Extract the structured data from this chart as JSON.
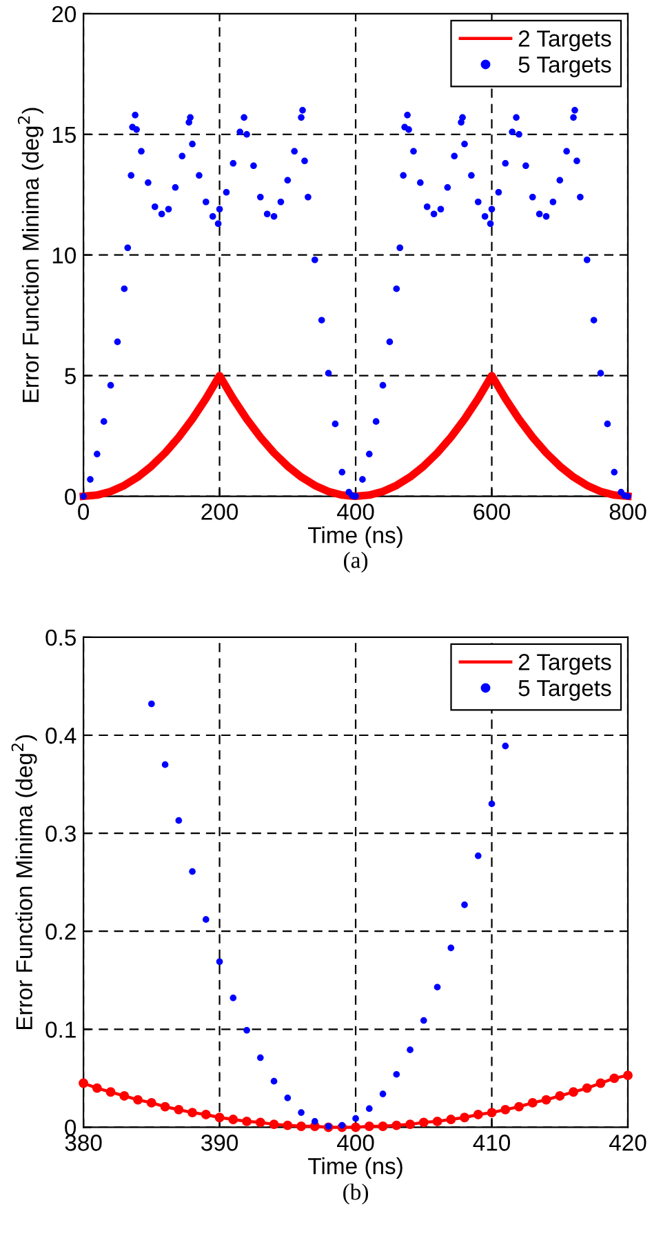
{
  "chart_data": [
    {
      "type": "scatter",
      "xlabel": "Time (ns)",
      "ylabel": "Error Function Minima (deg$^{2}$)",
      "xlim": [
        0,
        800
      ],
      "ylim": [
        0,
        20
      ],
      "xticks": [
        0,
        200,
        400,
        600,
        800
      ],
      "yticks": [
        0,
        5,
        10,
        15,
        20
      ],
      "grid": true,
      "legend": "top right",
      "annotations": [
        "(a)"
      ],
      "series": [
        {
          "name": "2 Targets",
          "type": "line",
          "color": "#ff0000",
          "marker": "none",
          "line_style": "solid",
          "x": [
            0,
            20,
            40,
            60,
            80,
            100,
            120,
            140,
            160,
            180,
            200,
            220,
            240,
            260,
            280,
            300,
            320,
            340,
            360,
            380,
            400,
            420,
            440,
            460,
            480,
            500,
            520,
            540,
            560,
            580,
            600,
            620,
            640,
            660,
            680,
            700,
            720,
            740,
            760,
            780,
            800
          ],
          "values": [
            0,
            0.05,
            0.2,
            0.45,
            0.8,
            1.25,
            1.8,
            2.45,
            3.2,
            4.05,
            5,
            4.05,
            3.2,
            2.45,
            1.8,
            1.25,
            0.8,
            0.45,
            0.2,
            0.05,
            0,
            0.05,
            0.2,
            0.45,
            0.8,
            1.25,
            1.8,
            2.45,
            3.2,
            4.05,
            5,
            4.05,
            3.2,
            2.45,
            1.8,
            1.25,
            0.8,
            0.45,
            0.2,
            0.05,
            0
          ]
        },
        {
          "name": "5 Targets",
          "color": "#0000ff",
          "marker": "circle",
          "x": [
            0,
            10,
            20,
            30,
            40,
            50,
            60,
            65,
            70,
            72,
            76,
            78,
            85,
            95,
            105,
            115,
            125,
            135,
            145,
            155,
            157,
            160,
            170,
            180,
            190,
            198,
            200,
            210,
            220,
            230,
            236,
            240,
            250,
            260,
            270,
            280,
            290,
            300,
            310,
            320,
            322,
            325,
            330,
            340,
            350,
            360,
            370,
            380,
            390,
            395,
            398,
            400,
            410,
            420,
            430,
            440,
            450,
            460,
            465,
            470,
            472,
            476,
            478,
            485,
            495,
            505,
            515,
            525,
            535,
            545,
            555,
            557,
            560,
            570,
            580,
            590,
            598,
            600,
            610,
            620,
            630,
            636,
            640,
            650,
            660,
            670,
            680,
            690,
            700,
            710,
            720,
            722,
            725,
            730,
            740,
            750,
            760,
            770,
            780,
            790,
            795,
            800
          ],
          "values": [
            0,
            0.7,
            1.75,
            3.1,
            4.6,
            6.4,
            8.6,
            10.3,
            13.3,
            15.3,
            15.8,
            15.2,
            14.3,
            13.0,
            12.0,
            11.7,
            11.9,
            12.8,
            14.1,
            15.5,
            15.7,
            14.6,
            13.3,
            12.2,
            11.6,
            11.3,
            11.9,
            12.6,
            13.8,
            15.1,
            15.7,
            15.0,
            13.7,
            12.4,
            11.7,
            11.6,
            12.2,
            13.1,
            14.3,
            15.7,
            16.0,
            13.9,
            12.4,
            9.8,
            7.3,
            5.1,
            3.0,
            1.0,
            0.17,
            0.03,
            0,
            0.01,
            0.7,
            1.75,
            3.1,
            4.6,
            6.4,
            8.6,
            10.3,
            13.3,
            15.3,
            15.8,
            15.2,
            14.3,
            13.0,
            12.0,
            11.7,
            11.9,
            12.8,
            14.1,
            15.5,
            15.7,
            14.6,
            13.3,
            12.2,
            11.6,
            11.3,
            11.9,
            12.6,
            13.8,
            15.1,
            15.7,
            15.0,
            13.7,
            12.4,
            11.7,
            11.6,
            12.2,
            13.1,
            14.3,
            15.7,
            16.0,
            13.9,
            12.4,
            9.8,
            7.3,
            5.1,
            3.0,
            1.0,
            0.17,
            0.03,
            0
          ]
        }
      ]
    },
    {
      "type": "scatter",
      "xlabel": "Time (ns)",
      "ylabel": "Error Function Minima (deg$^{2}$)",
      "xlim": [
        380,
        420
      ],
      "ylim": [
        0,
        0.5
      ],
      "xticks": [
        380,
        390,
        400,
        410,
        420
      ],
      "yticks": [
        0,
        0.1,
        0.2,
        0.3,
        0.4,
        0.5
      ],
      "grid": true,
      "legend": "top right",
      "annotations": [
        "(b)"
      ],
      "series": [
        {
          "name": "2 Targets",
          "type": "line",
          "color": "#ff0000",
          "marker": "circle",
          "line_style": "solid",
          "x": [
            380,
            381,
            382,
            383,
            384,
            385,
            386,
            387,
            388,
            389,
            390,
            391,
            392,
            393,
            394,
            395,
            396,
            397,
            398,
            399,
            400,
            401,
            402,
            403,
            404,
            405,
            406,
            407,
            408,
            409,
            410,
            411,
            412,
            413,
            414,
            415,
            416,
            417,
            418,
            419,
            420
          ],
          "values": [
            0.045,
            0.04,
            0.036,
            0.032,
            0.028,
            0.025,
            0.021,
            0.018,
            0.015,
            0.013,
            0.01,
            0.008,
            0.006,
            0.005,
            0.003,
            0.002,
            0.001,
            0.001,
            0,
            0,
            0,
            0.001,
            0.001,
            0.002,
            0.003,
            0.005,
            0.006,
            0.008,
            0.01,
            0.013,
            0.015,
            0.018,
            0.021,
            0.025,
            0.028,
            0.032,
            0.036,
            0.04,
            0.045,
            0.05,
            0.053
          ]
        },
        {
          "name": "5 Targets",
          "color": "#0000ff",
          "marker": "circle",
          "x": [
            385,
            386,
            387,
            388,
            389,
            390,
            391,
            392,
            393,
            394,
            395,
            396,
            397,
            398,
            399,
            400,
            401,
            402,
            403,
            404,
            405,
            406,
            407,
            408,
            409,
            410,
            411
          ],
          "values": [
            0.432,
            0.37,
            0.313,
            0.261,
            0.212,
            0.169,
            0.132,
            0.099,
            0.071,
            0.047,
            0.03,
            0.015,
            0.006,
            0.001,
            0.002,
            0.009,
            0.019,
            0.034,
            0.054,
            0.079,
            0.109,
            0.143,
            0.183,
            0.227,
            0.277,
            0.33,
            0.389
          ]
        }
      ]
    }
  ]
}
